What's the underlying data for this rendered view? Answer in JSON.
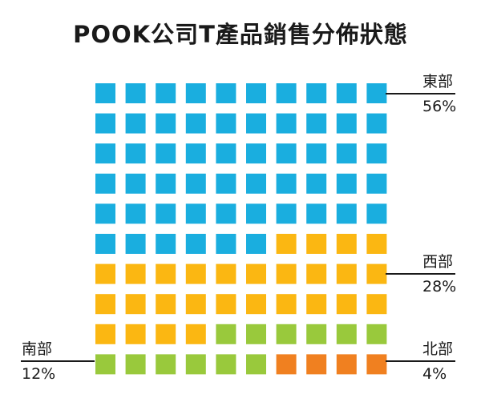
{
  "chart_data": {
    "type": "waffle",
    "title": "POOK公司T產品銷售分佈狀態",
    "grid": {
      "rows": 10,
      "cols": 10
    },
    "series": [
      {
        "name": "東部",
        "label": "56%",
        "value": 56,
        "color": "#1aaedf"
      },
      {
        "name": "西部",
        "label": "28%",
        "value": 28,
        "color": "#fbb712"
      },
      {
        "name": "南部",
        "label": "12%",
        "value": 12,
        "color": "#99c93c"
      },
      {
        "name": "北部",
        "label": "4%",
        "value": 4,
        "color": "#f08020"
      }
    ]
  }
}
